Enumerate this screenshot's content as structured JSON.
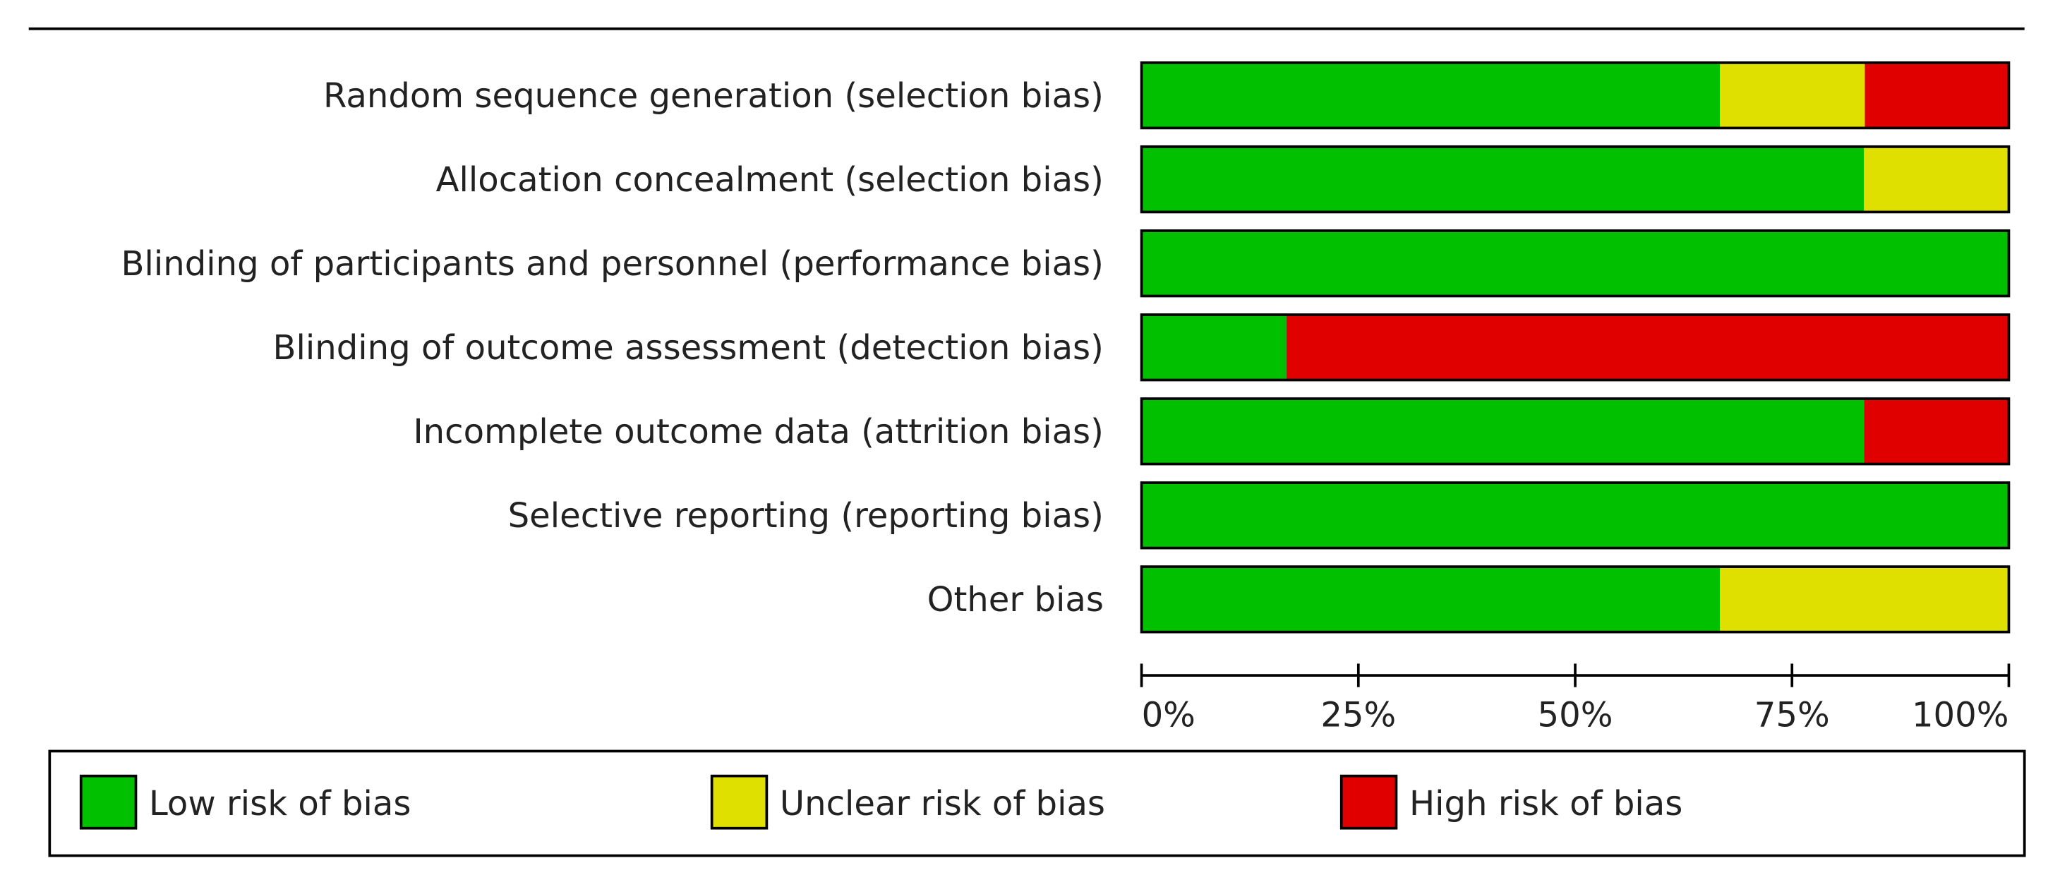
{
  "chart_data": {
    "type": "bar",
    "orientation": "horizontal",
    "stacked": true,
    "categories": [
      "Random sequence generation (selection bias)",
      "Allocation concealment (selection bias)",
      "Blinding of participants and personnel (performance bias)",
      "Blinding of outcome assessment (detection bias)",
      "Incomplete outcome data (attrition bias)",
      "Selective reporting (reporting bias)",
      "Other bias"
    ],
    "series": [
      {
        "name": "Low risk of bias",
        "color": "#00c000",
        "values": [
          66.7,
          83.3,
          100,
          16.7,
          83.3,
          100,
          66.7
        ]
      },
      {
        "name": "Unclear risk of bias",
        "color": "#e0e000",
        "values": [
          16.7,
          16.7,
          0,
          0,
          0,
          0,
          33.3
        ]
      },
      {
        "name": "High risk of bias",
        "color": "#e00000",
        "values": [
          16.6,
          0,
          0,
          83.3,
          16.7,
          0,
          0
        ]
      }
    ],
    "xlim": [
      0,
      100
    ],
    "xticks": [
      {
        "value": 0,
        "label": "0%"
      },
      {
        "value": 25,
        "label": "25%"
      },
      {
        "value": 50,
        "label": "50%"
      },
      {
        "value": 75,
        "label": "75%"
      },
      {
        "value": 100,
        "label": "100%"
      }
    ],
    "legend": "bottom"
  }
}
